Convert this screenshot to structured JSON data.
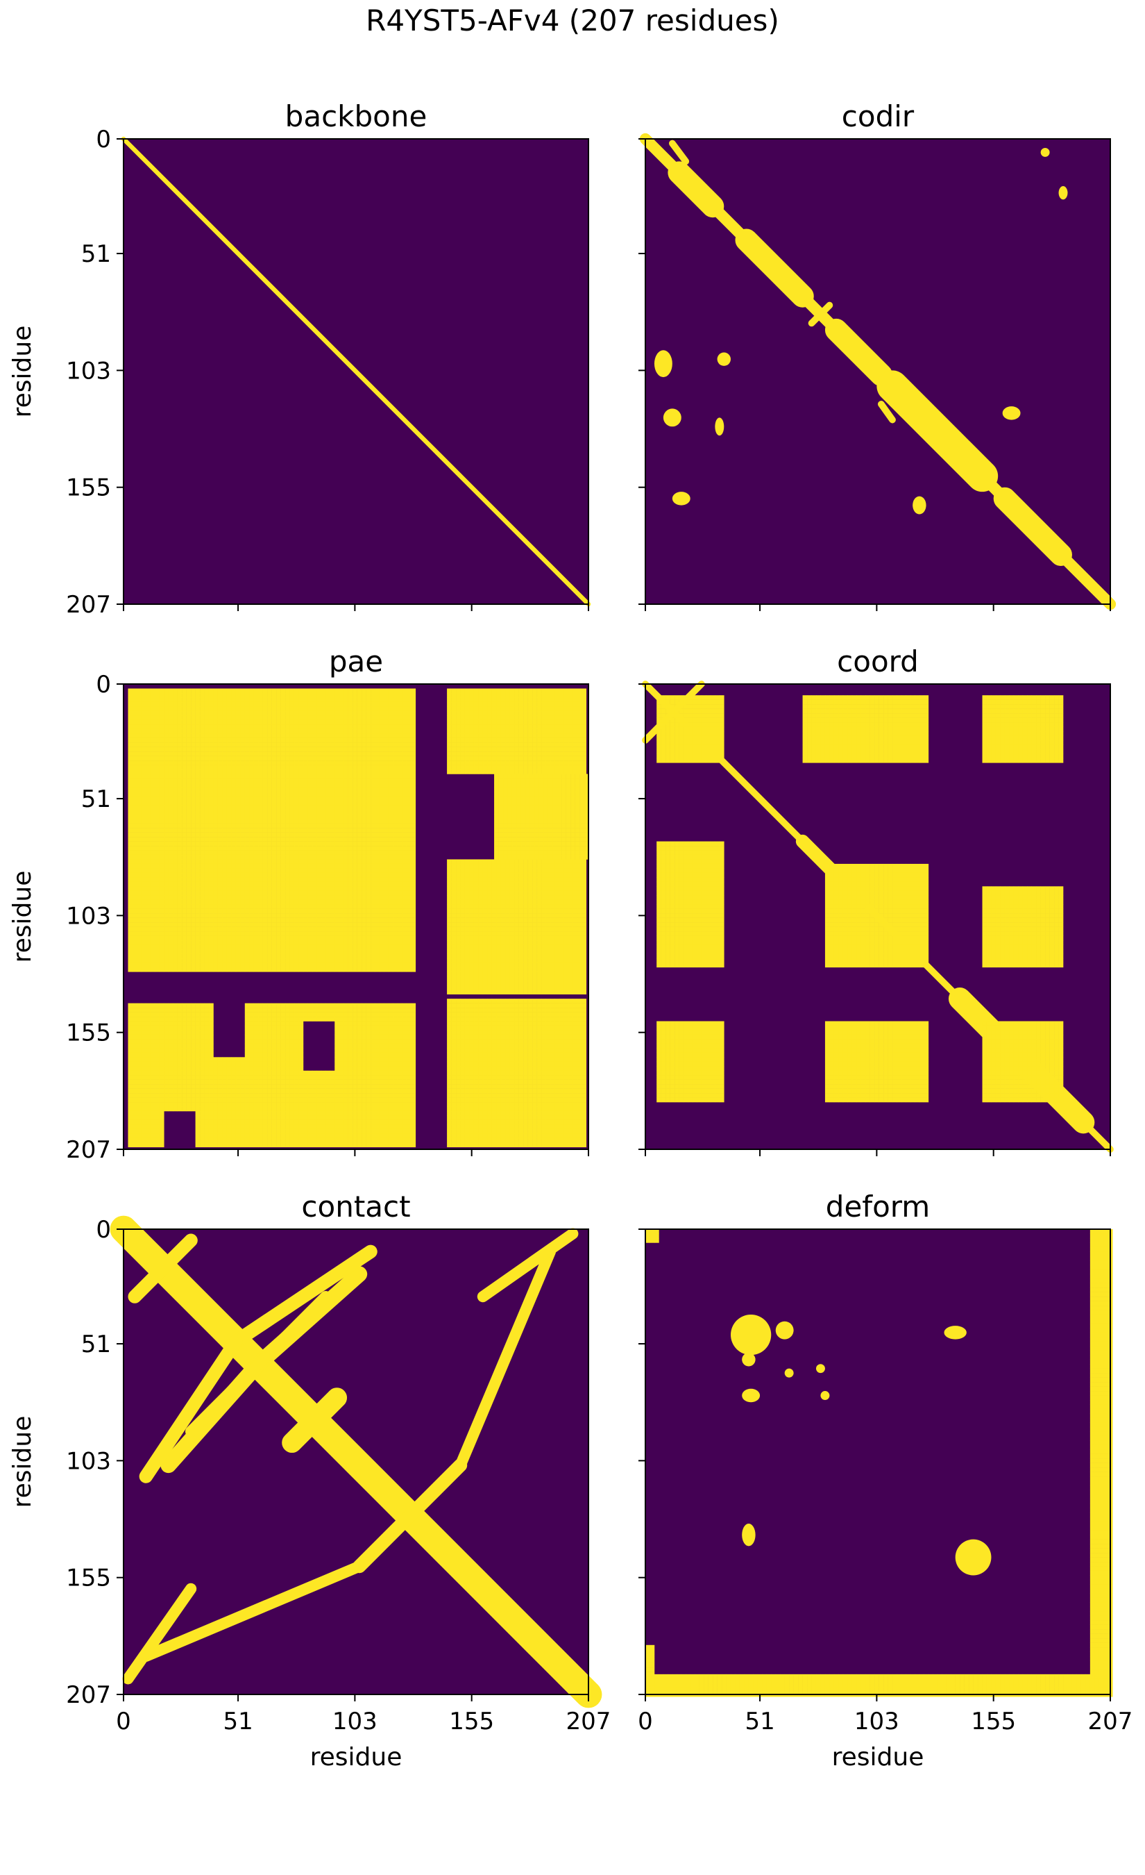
{
  "figure": {
    "title": "R4YST5-AFv4 (207 residues)"
  },
  "colors": {
    "background": "#440154",
    "foreground": "#fde725",
    "axis": "#000000"
  },
  "chart_data": [
    {
      "type": "heatmap",
      "title": "backbone",
      "xlabel": "",
      "ylabel": "residue",
      "ticks": [
        0,
        51,
        103,
        155,
        207
      ],
      "n": 207,
      "regions": [
        {
          "shape": "band",
          "from": [
            0,
            0
          ],
          "to": [
            207,
            207
          ],
          "width": 2
        }
      ]
    },
    {
      "type": "heatmap",
      "title": "codir",
      "xlabel": "",
      "ylabel": "",
      "ticks": [
        0,
        51,
        103,
        155,
        207
      ],
      "n": 207,
      "regions": [
        {
          "shape": "band",
          "from": [
            0,
            0
          ],
          "to": [
            207,
            207
          ],
          "width": 5
        },
        {
          "shape": "band",
          "from": [
            15,
            15
          ],
          "to": [
            30,
            30
          ],
          "width": 10
        },
        {
          "shape": "band",
          "from": [
            45,
            45
          ],
          "to": [
            70,
            70
          ],
          "width": 10
        },
        {
          "shape": "band",
          "from": [
            85,
            85
          ],
          "to": [
            105,
            105
          ],
          "width": 10
        },
        {
          "shape": "band",
          "from": [
            110,
            110
          ],
          "to": [
            150,
            150
          ],
          "width": 14
        },
        {
          "shape": "band",
          "from": [
            160,
            160
          ],
          "to": [
            185,
            185
          ],
          "width": 10
        },
        {
          "shape": "band",
          "from": [
            74,
            82
          ],
          "to": [
            82,
            74
          ],
          "width": 3
        },
        {
          "shape": "band",
          "from": [
            12,
            2
          ],
          "to": [
            18,
            10
          ],
          "width": 3
        },
        {
          "shape": "band",
          "from": [
            105,
            118
          ],
          "to": [
            110,
            125
          ],
          "width": 3
        },
        {
          "shape": "blob",
          "center": [
            8,
            100
          ],
          "size": [
            4,
            6
          ]
        },
        {
          "shape": "blob",
          "center": [
            35,
            98
          ],
          "size": [
            3,
            3
          ]
        },
        {
          "shape": "blob",
          "center": [
            12,
            124
          ],
          "size": [
            4,
            4
          ]
        },
        {
          "shape": "blob",
          "center": [
            16,
            160
          ],
          "size": [
            4,
            3
          ]
        },
        {
          "shape": "blob",
          "center": [
            33,
            128
          ],
          "size": [
            2,
            4
          ]
        },
        {
          "shape": "blob",
          "center": [
            163,
            122
          ],
          "size": [
            4,
            3
          ]
        },
        {
          "shape": "blob",
          "center": [
            122,
            163
          ],
          "size": [
            3,
            4
          ]
        },
        {
          "shape": "blob",
          "center": [
            178,
            6
          ],
          "size": [
            2,
            2
          ]
        },
        {
          "shape": "blob",
          "center": [
            186,
            24
          ],
          "size": [
            2,
            3
          ]
        }
      ]
    },
    {
      "type": "heatmap",
      "title": "pae",
      "xlabel": "",
      "ylabel": "residue",
      "ticks": [
        0,
        51,
        103,
        155,
        207
      ],
      "n": 207,
      "regions": [
        {
          "shape": "rect",
          "x": [
            2,
            130
          ],
          "y": [
            2,
            140
          ]
        },
        {
          "shape": "rect",
          "x": [
            140,
            206
          ],
          "y": [
            2,
            40
          ]
        },
        {
          "shape": "rect",
          "x": [
            140,
            206
          ],
          "y": [
            78,
            138
          ]
        },
        {
          "shape": "rect",
          "x": [
            2,
            206
          ],
          "y": [
            140,
            206
          ]
        },
        {
          "shape": "rect",
          "x": [
            165,
            206
          ],
          "y": [
            40,
            78
          ]
        }
      ],
      "holes": [
        {
          "shape": "rect",
          "x": [
            40,
            52
          ],
          "y": [
            140,
            165
          ]
        },
        {
          "shape": "rect",
          "x": [
            130,
            142
          ],
          "y": [
            2,
            206
          ]
        },
        {
          "shape": "rect",
          "x": [
            2,
            130
          ],
          "y": [
            128,
            140
          ]
        },
        {
          "shape": "rect",
          "x": [
            80,
            92
          ],
          "y": [
            150,
            170
          ]
        },
        {
          "shape": "rect",
          "x": [
            18,
            30
          ],
          "y": [
            190,
            206
          ]
        }
      ]
    },
    {
      "type": "heatmap",
      "title": "coord",
      "xlabel": "",
      "ylabel": "",
      "ticks": [
        0,
        51,
        103,
        155,
        207
      ],
      "n": 207,
      "regions": [
        {
          "shape": "band",
          "from": [
            0,
            0
          ],
          "to": [
            207,
            207
          ],
          "width": 3
        },
        {
          "shape": "band",
          "from": [
            140,
            140
          ],
          "to": [
            195,
            195
          ],
          "width": 10
        },
        {
          "shape": "band",
          "from": [
            70,
            70
          ],
          "to": [
            90,
            90
          ],
          "width": 6
        },
        {
          "shape": "band",
          "from": [
            0,
            25
          ],
          "to": [
            25,
            0
          ],
          "width": 3
        },
        {
          "shape": "rect",
          "x": [
            5,
            35
          ],
          "y": [
            5,
            35
          ]
        },
        {
          "shape": "rect",
          "x": [
            70,
            125
          ],
          "y": [
            5,
            35
          ]
        },
        {
          "shape": "rect",
          "x": [
            150,
            185
          ],
          "y": [
            5,
            35
          ]
        },
        {
          "shape": "rect",
          "x": [
            5,
            35
          ],
          "y": [
            70,
            125
          ]
        },
        {
          "shape": "rect",
          "x": [
            80,
            125
          ],
          "y": [
            80,
            125
          ]
        },
        {
          "shape": "rect",
          "x": [
            150,
            185
          ],
          "y": [
            90,
            125
          ]
        },
        {
          "shape": "rect",
          "x": [
            5,
            35
          ],
          "y": [
            150,
            185
          ]
        },
        {
          "shape": "rect",
          "x": [
            80,
            125
          ],
          "y": [
            150,
            185
          ]
        },
        {
          "shape": "rect",
          "x": [
            150,
            185
          ],
          "y": [
            150,
            185
          ]
        }
      ]
    },
    {
      "type": "heatmap",
      "title": "contact",
      "xlabel": "residue",
      "ylabel": "residue",
      "ticks": [
        0,
        51,
        103,
        155,
        207
      ],
      "n": 207,
      "regions": [
        {
          "shape": "band",
          "from": [
            0,
            0
          ],
          "to": [
            207,
            207
          ],
          "width": 12
        },
        {
          "shape": "band",
          "from": [
            5,
            30
          ],
          "to": [
            30,
            5
          ],
          "width": 6
        },
        {
          "shape": "band",
          "from": [
            20,
            105
          ],
          "to": [
            60,
            60
          ],
          "width": 7
        },
        {
          "shape": "band",
          "from": [
            60,
            60
          ],
          "to": [
            105,
            20
          ],
          "width": 7
        },
        {
          "shape": "band",
          "from": [
            50,
            50
          ],
          "to": [
            110,
            10
          ],
          "width": 6
        },
        {
          "shape": "band",
          "from": [
            10,
            110
          ],
          "to": [
            50,
            50
          ],
          "width": 6
        },
        {
          "shape": "band",
          "from": [
            105,
            150
          ],
          "to": [
            150,
            105
          ],
          "width": 6
        },
        {
          "shape": "band",
          "from": [
            150,
            105
          ],
          "to": [
            190,
            10
          ],
          "width": 5
        },
        {
          "shape": "band",
          "from": [
            10,
            190
          ],
          "to": [
            105,
            150
          ],
          "width": 5
        },
        {
          "shape": "band",
          "from": [
            30,
            90
          ],
          "to": [
            90,
            30
          ],
          "width": 5
        },
        {
          "shape": "band",
          "from": [
            75,
            95
          ],
          "to": [
            95,
            75
          ],
          "width": 9
        },
        {
          "shape": "band",
          "from": [
            2,
            200
          ],
          "to": [
            30,
            160
          ],
          "width": 5
        },
        {
          "shape": "band",
          "from": [
            160,
            30
          ],
          "to": [
            200,
            2
          ],
          "width": 5
        }
      ]
    },
    {
      "type": "heatmap",
      "title": "deform",
      "xlabel": "residue",
      "ylabel": "",
      "ticks": [
        0,
        51,
        103,
        155,
        207
      ],
      "n": 207,
      "regions": [
        {
          "shape": "rect",
          "x": [
            0,
            207
          ],
          "y": [
            198,
            207
          ]
        },
        {
          "shape": "rect",
          "x": [
            198,
            207
          ],
          "y": [
            0,
            207
          ]
        },
        {
          "shape": "rect",
          "x": [
            0,
            5
          ],
          "y": [
            0,
            5
          ]
        },
        {
          "shape": "rect",
          "x": [
            0,
            4
          ],
          "y": [
            185,
            207
          ]
        },
        {
          "shape": "blob",
          "center": [
            47,
            47
          ],
          "size": [
            9,
            9
          ]
        },
        {
          "shape": "blob",
          "center": [
            62,
            45
          ],
          "size": [
            4,
            4
          ]
        },
        {
          "shape": "blob",
          "center": [
            46,
            58
          ],
          "size": [
            3,
            3
          ]
        },
        {
          "shape": "blob",
          "center": [
            47,
            74
          ],
          "size": [
            4,
            3
          ]
        },
        {
          "shape": "blob",
          "center": [
            64,
            64
          ],
          "size": [
            2,
            2
          ]
        },
        {
          "shape": "blob",
          "center": [
            146,
            146
          ],
          "size": [
            8,
            8
          ]
        },
        {
          "shape": "blob",
          "center": [
            46,
            136
          ],
          "size": [
            3,
            5
          ]
        },
        {
          "shape": "blob",
          "center": [
            138,
            46
          ],
          "size": [
            5,
            3
          ]
        },
        {
          "shape": "blob",
          "center": [
            78,
            62
          ],
          "size": [
            2,
            2
          ]
        },
        {
          "shape": "blob",
          "center": [
            80,
            74
          ],
          "size": [
            2,
            2
          ]
        }
      ]
    }
  ]
}
